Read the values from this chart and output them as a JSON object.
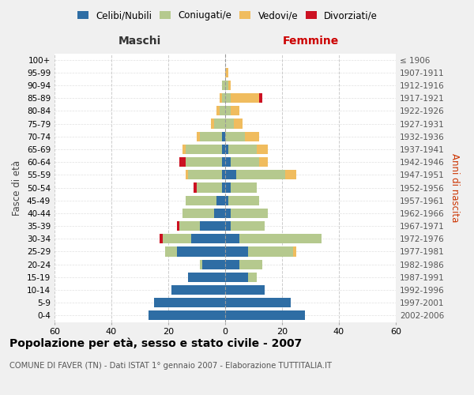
{
  "age_groups": [
    "0-4",
    "5-9",
    "10-14",
    "15-19",
    "20-24",
    "25-29",
    "30-34",
    "35-39",
    "40-44",
    "45-49",
    "50-54",
    "55-59",
    "60-64",
    "65-69",
    "70-74",
    "75-79",
    "80-84",
    "85-89",
    "90-94",
    "95-99",
    "100+"
  ],
  "birth_years": [
    "2002-2006",
    "1997-2001",
    "1992-1996",
    "1987-1991",
    "1982-1986",
    "1977-1981",
    "1972-1976",
    "1967-1971",
    "1962-1966",
    "1957-1961",
    "1952-1956",
    "1947-1951",
    "1942-1946",
    "1937-1941",
    "1932-1936",
    "1927-1931",
    "1922-1926",
    "1917-1921",
    "1912-1916",
    "1907-1911",
    "≤ 1906"
  ],
  "male_celibi": [
    27,
    25,
    19,
    13,
    8,
    17,
    12,
    9,
    4,
    3,
    1,
    1,
    1,
    1,
    1,
    0,
    0,
    0,
    0,
    0,
    0
  ],
  "male_coniugati": [
    0,
    0,
    0,
    0,
    1,
    4,
    10,
    7,
    11,
    11,
    9,
    12,
    13,
    13,
    8,
    4,
    2,
    1,
    1,
    0,
    0
  ],
  "male_vedovi": [
    0,
    0,
    0,
    0,
    0,
    0,
    0,
    0,
    0,
    0,
    0,
    1,
    0,
    1,
    1,
    1,
    1,
    1,
    0,
    0,
    0
  ],
  "male_divorziati": [
    0,
    0,
    0,
    0,
    0,
    0,
    1,
    1,
    0,
    0,
    1,
    0,
    2,
    0,
    0,
    0,
    0,
    0,
    0,
    0,
    0
  ],
  "fem_nubili": [
    28,
    23,
    14,
    8,
    5,
    8,
    5,
    2,
    2,
    1,
    2,
    4,
    2,
    1,
    0,
    0,
    0,
    0,
    0,
    0,
    0
  ],
  "fem_coniugate": [
    0,
    0,
    0,
    3,
    8,
    16,
    29,
    12,
    13,
    11,
    9,
    17,
    10,
    10,
    7,
    3,
    2,
    2,
    1,
    0,
    0
  ],
  "fem_vedove": [
    0,
    0,
    0,
    0,
    0,
    1,
    0,
    0,
    0,
    0,
    0,
    4,
    3,
    4,
    5,
    3,
    3,
    10,
    1,
    1,
    0
  ],
  "fem_divorziate": [
    0,
    0,
    0,
    0,
    0,
    0,
    0,
    0,
    0,
    0,
    0,
    0,
    0,
    0,
    0,
    0,
    0,
    1,
    0,
    0,
    0
  ],
  "color_celibi": "#2e6da4",
  "color_coniugati": "#b5c98e",
  "color_vedovi": "#f0bc5e",
  "color_divorziati": "#cc1122",
  "xlim": 60,
  "bg_color": "#f0f0f0",
  "plot_bg": "#ffffff",
  "grid_color": "#cccccc",
  "title": "Popolazione per età, sesso e stato civile - 2007",
  "subtitle": "COMUNE DI FAVER (TN) - Dati ISTAT 1° gennaio 2007 - Elaborazione TUTTITALIA.IT",
  "label_maschi": "Maschi",
  "label_femmine": "Femmine",
  "ylabel_left": "Fasce di età",
  "ylabel_right": "Anni di nascita",
  "legend_labels": [
    "Celibi/Nubili",
    "Coniugati/e",
    "Vedovi/e",
    "Divorziati/e"
  ]
}
